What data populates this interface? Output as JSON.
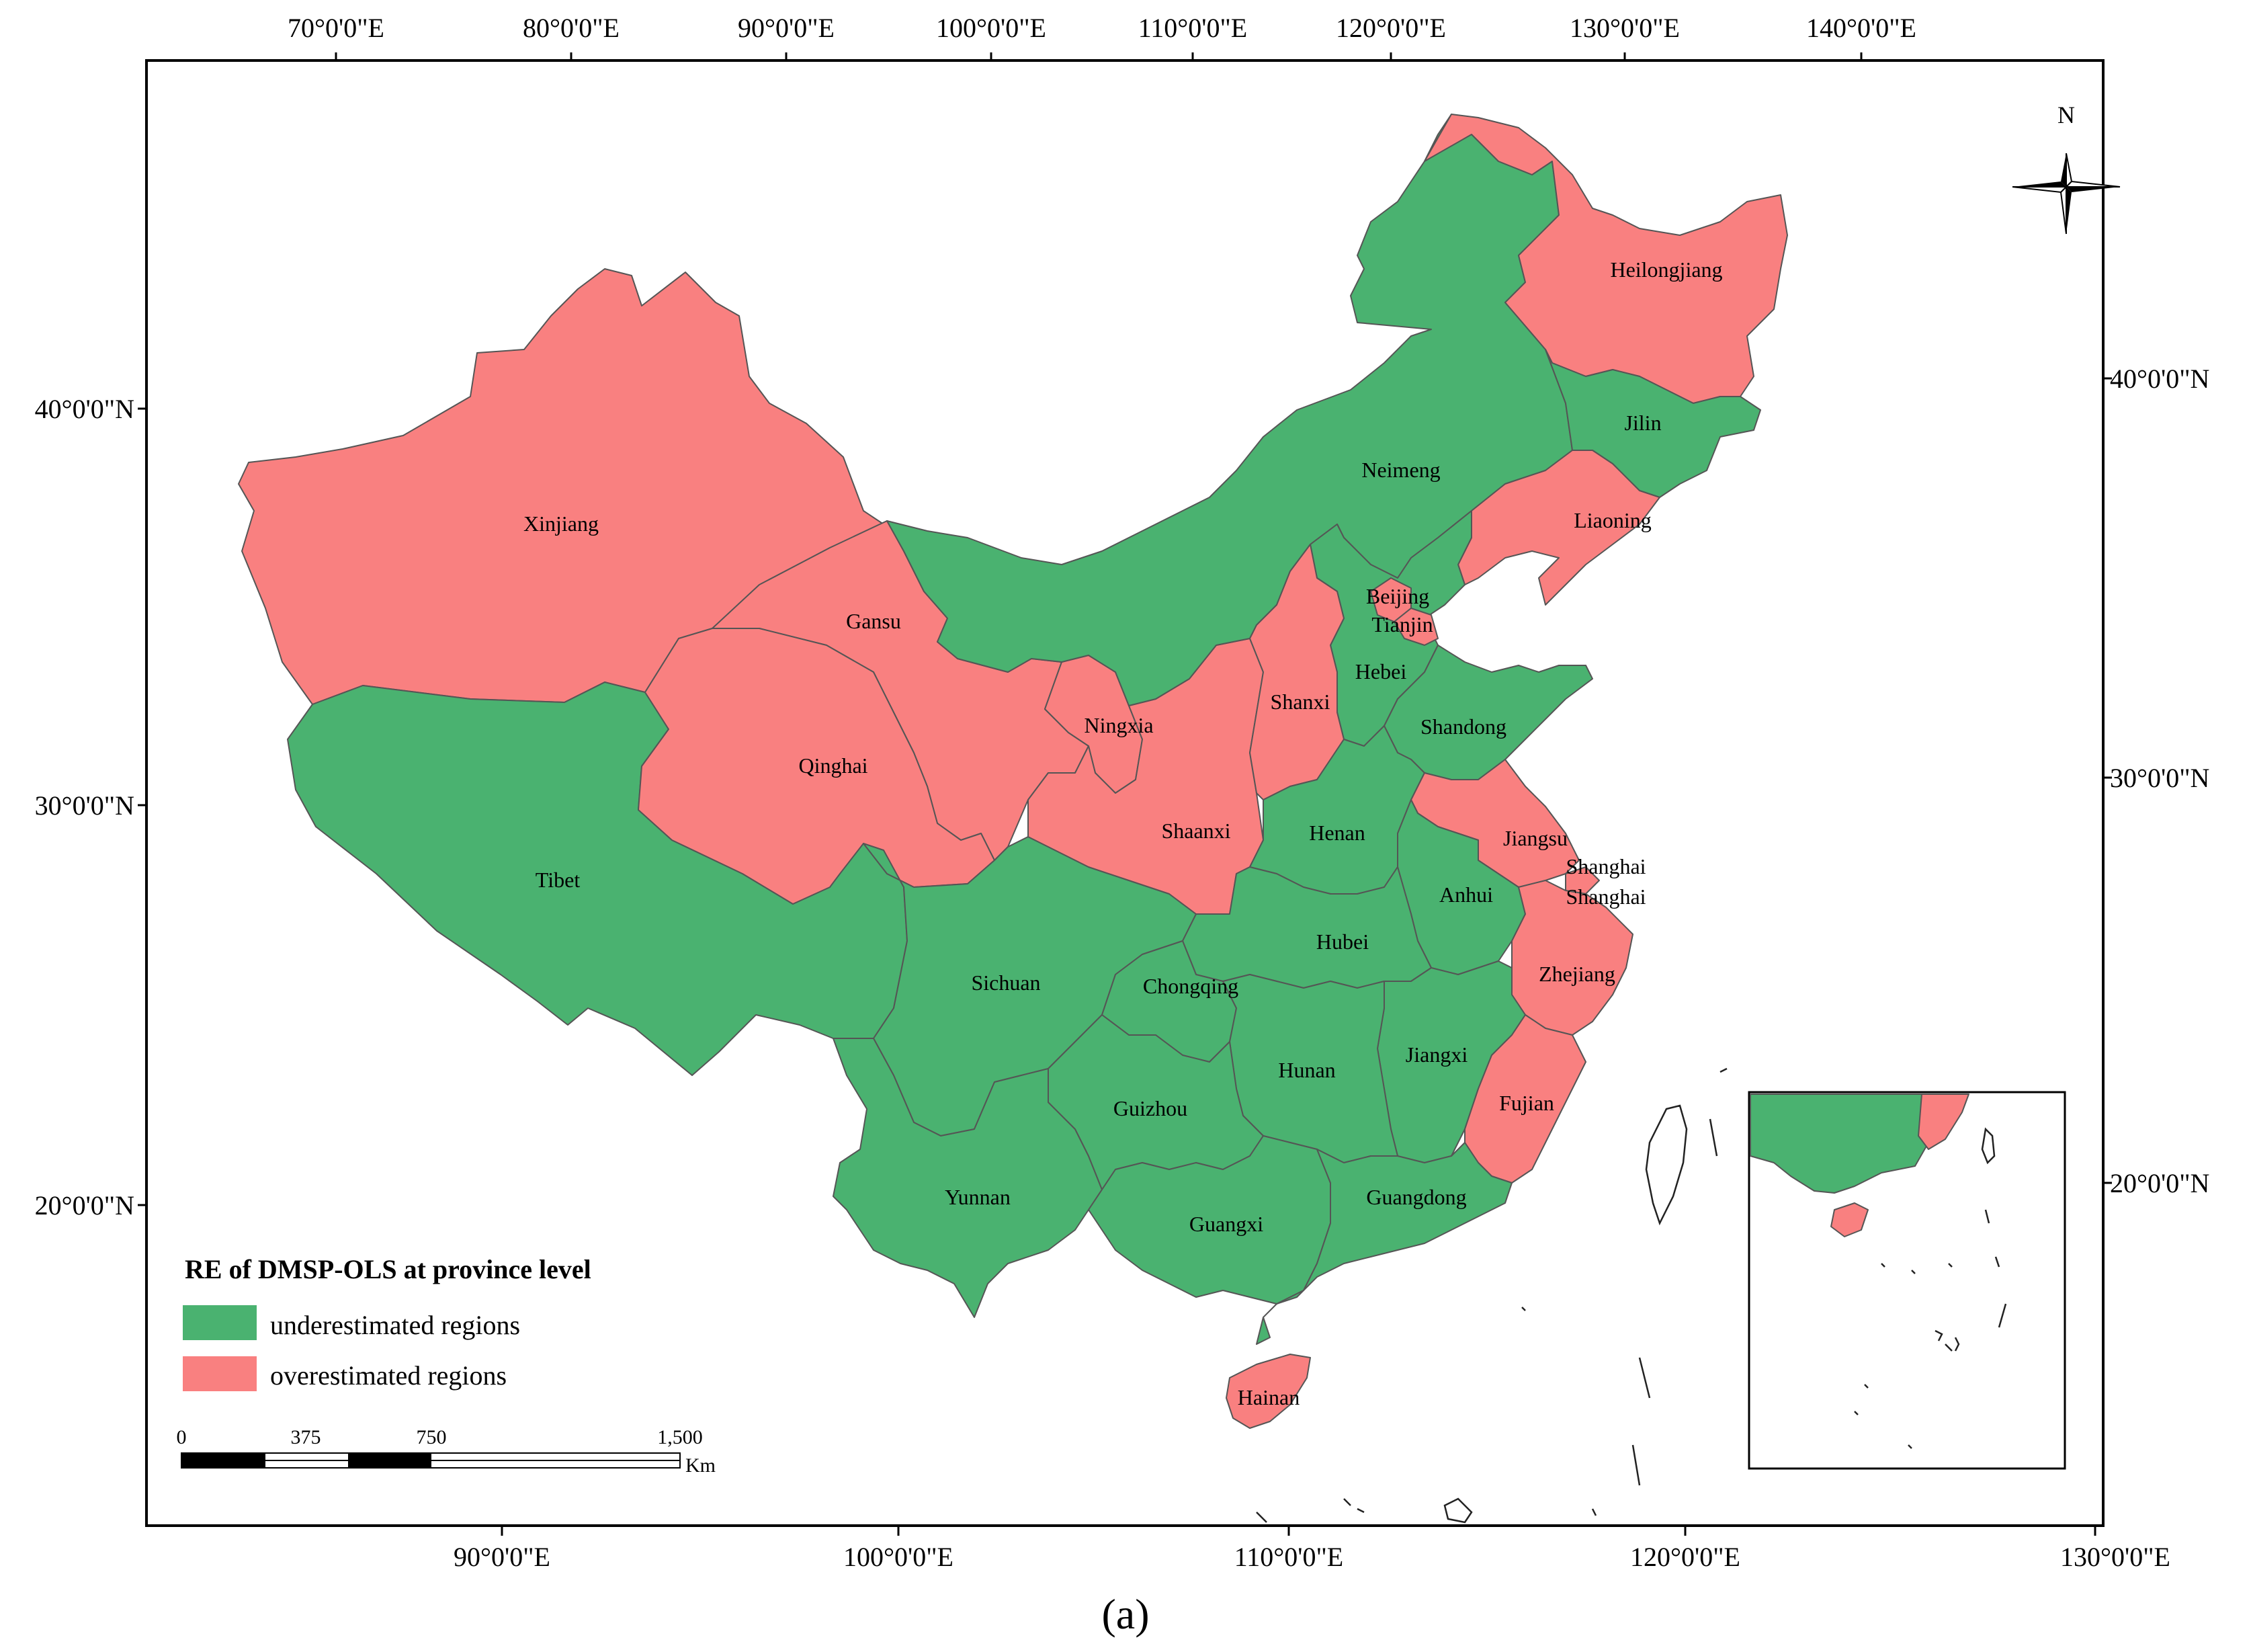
{
  "map": {
    "top_ticks": [
      "70°0'0\"E",
      "80°0'0\"E",
      "90°0'0\"E",
      "100°0'0\"E",
      "110°0'0\"E",
      "120°0'0\"E",
      "130°0'0\"E",
      "140°0'0\"E"
    ],
    "bottom_ticks": [
      "90°0'0\"E",
      "100°0'0\"E",
      "110°0'0\"E",
      "120°0'0\"E",
      "130°0'0\"E"
    ],
    "left_ticks": [
      "40°0'0\"N",
      "30°0'0\"N",
      "20°0'0\"N"
    ],
    "right_ticks": [
      "40°0'0\"N",
      "30°0'0\"N",
      "20°0'0\"N"
    ],
    "north_label": "N",
    "provinces": {
      "heilongjiang": "Heilongjiang",
      "jilin": "Jilin",
      "liaoning": "Liaoning",
      "neimeng": "Neimeng",
      "xinjiang": "Xinjiang",
      "gansu": "Gansu",
      "beijing": "Beijing",
      "tianjin": "Tianjin",
      "hebei": "Hebei",
      "shanxi": "Shanxi",
      "ningxia": "Ningxia",
      "shandong": "Shandong",
      "qinghai": "Qinghai",
      "jiangsu": "Jiangsu",
      "shanghai": "Shanghai",
      "shanghai_2": "Shanghai",
      "shaanxi": "Shaanxi",
      "henan": "Henan",
      "tibet": "Tibet",
      "anhui": "Anhui",
      "hubei": "Hubei",
      "sichuan": "Sichuan",
      "chongqing": "Chongqing",
      "zhejiang": "Zhejiang",
      "hunan": "Hunan",
      "jiangxi": "Jiangxi",
      "guizhou": "Guizhou",
      "fujian": "Fujian",
      "yunnan": "Yunnan",
      "guangdong": "Guangdong",
      "guangxi": "Guangxi",
      "hainan": "Hainan"
    },
    "classification": {
      "over": [
        "xinjiang",
        "gansu",
        "qinghai",
        "ningxia",
        "shaanxi",
        "shanxi",
        "heilongjiang",
        "liaoning",
        "beijing",
        "tianjin",
        "jiangsu",
        "shanghai",
        "zhejiang",
        "fujian",
        "hainan"
      ],
      "under": [
        "tibet",
        "sichuan",
        "yunnan",
        "chongqing",
        "guizhou",
        "guangxi",
        "guangdong",
        "hunan",
        "hubei",
        "jiangxi",
        "anhui",
        "henan",
        "hebei",
        "shandong",
        "neimeng",
        "jilin"
      ]
    },
    "colors": {
      "underestimated": "#4ab270",
      "overestimated": "#f98080"
    }
  },
  "legend": {
    "title": "RE of DMSP-OLS at province level",
    "items": [
      {
        "label": "underestimated regions",
        "color": "#4ab270"
      },
      {
        "label": "overestimated regions",
        "color": "#f98080"
      }
    ]
  },
  "scale_bar": {
    "labels": [
      "0",
      "375",
      "750",
      "1,500"
    ],
    "unit": "Km"
  },
  "caption": "(a)"
}
